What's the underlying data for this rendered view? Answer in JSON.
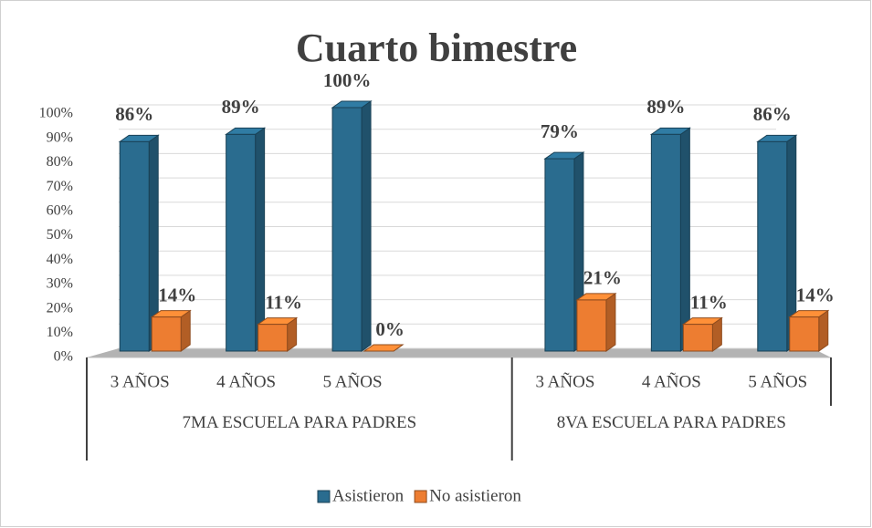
{
  "chart_data": {
    "type": "bar3d",
    "title": "Cuarto bimestre",
    "categories": [
      "3 AÑOS",
      "4 AÑOS",
      "5 AÑOS",
      null,
      "3 AÑOS",
      "4 AÑOS",
      "5 AÑOS"
    ],
    "groups": [
      {
        "name": "7MA ESCUELA PARA PADRES",
        "span": 4
      },
      {
        "name": "8VA ESCUELA PARA PADRES",
        "span": 3
      }
    ],
    "series": [
      {
        "name": "Asistieron",
        "color": "#2a6c8f",
        "values": [
          86,
          89,
          100,
          null,
          79,
          89,
          86
        ],
        "value_labels": [
          "86%",
          "89%",
          "100%",
          null,
          "79%",
          "89%",
          "86%"
        ]
      },
      {
        "name": "No asistieron",
        "color": "#ed7d31",
        "values": [
          14,
          11,
          0,
          null,
          21,
          11,
          14
        ],
        "value_labels": [
          "14%",
          "11%",
          "0%",
          null,
          "21%",
          "11%",
          "14%"
        ]
      }
    ],
    "ylim": [
      0,
      100
    ],
    "yticks": [
      {
        "value": 0,
        "label": "0%"
      },
      {
        "value": 10,
        "label": "10%"
      },
      {
        "value": 20,
        "label": "20%"
      },
      {
        "value": 30,
        "label": "30%"
      },
      {
        "value": 40,
        "label": "40%"
      },
      {
        "value": 50,
        "label": "50%"
      },
      {
        "value": 60,
        "label": "60%"
      },
      {
        "value": 70,
        "label": "70%"
      },
      {
        "value": 80,
        "label": "80%"
      },
      {
        "value": 90,
        "label": "90%"
      },
      {
        "value": 100,
        "label": "100%"
      }
    ],
    "grid": true,
    "legend": "bottom"
  }
}
